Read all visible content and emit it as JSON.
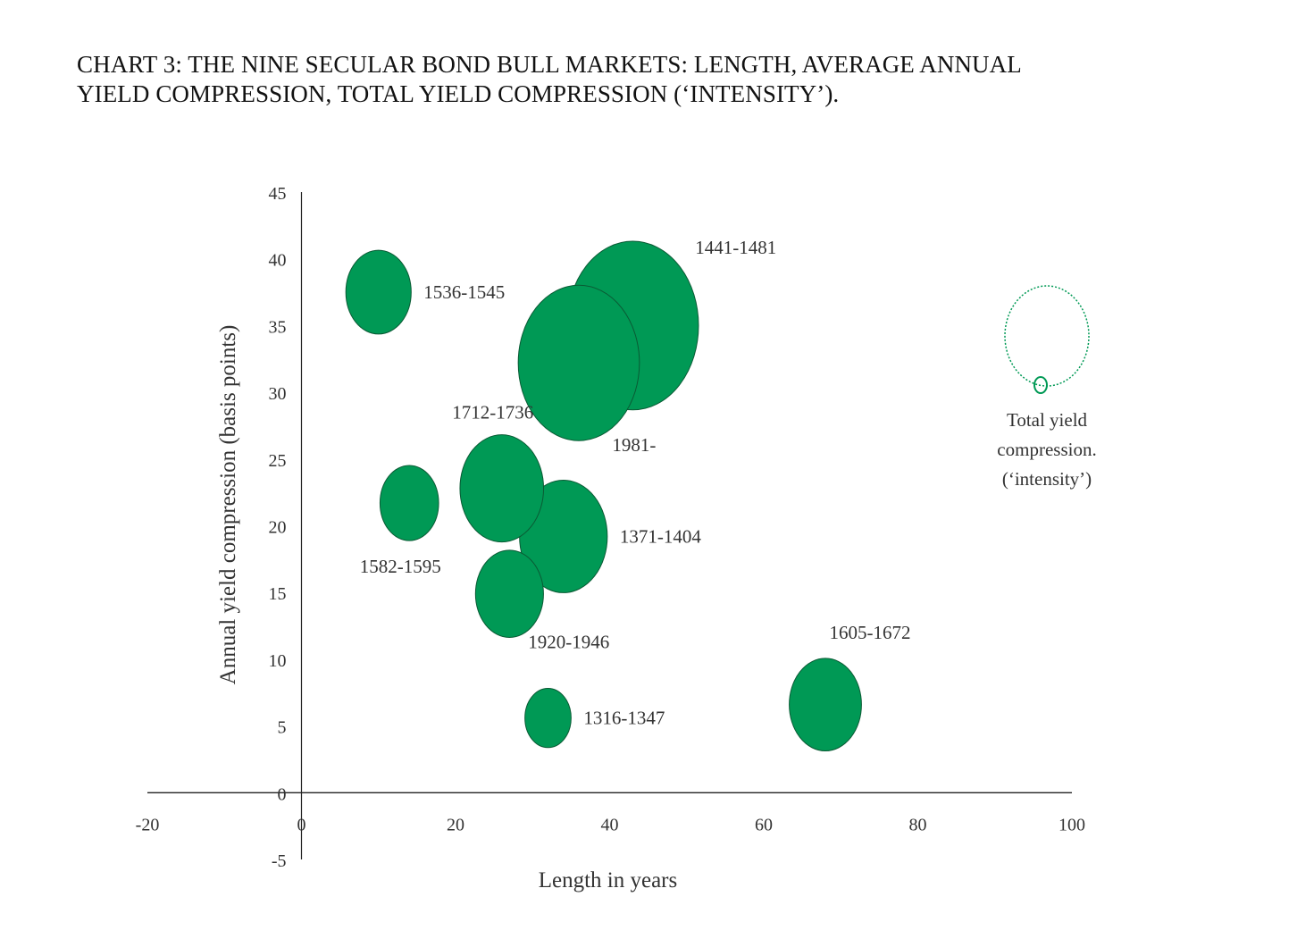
{
  "title": {
    "line1": "CHART 3: THE NINE SECULAR BOND BULL MARKETS: LENGTH, AVERAGE ANNUAL",
    "line2": "YIELD COMPRESSION, TOTAL YIELD COMPRESSION (‘INTENSITY’)."
  },
  "chart_data": {
    "type": "bubble",
    "title": "CHART 3: THE NINE SECULAR BOND BULL MARKETS: LENGTH, AVERAGE ANNUAL YIELD COMPRESSION, TOTAL YIELD COMPRESSION (‘INTENSITY’).",
    "xlabel": "Length in years",
    "ylabel": "Annual yield compression (basis points)",
    "xlim": [
      -20,
      100
    ],
    "ylim": [
      -5,
      45
    ],
    "x_ticks": [
      "-20",
      "0",
      "20",
      "40",
      "60",
      "80",
      "100"
    ],
    "y_ticks": [
      "-5",
      "0",
      "5",
      "10",
      "15",
      "20",
      "25",
      "30",
      "35",
      "40",
      "45"
    ],
    "color": "#009955",
    "points": [
      {
        "label": "1536-1545",
        "x": 10,
        "y": 37.5,
        "size": 3.6,
        "label_pos": "right"
      },
      {
        "label": "1441-1481",
        "x": 43,
        "y": 35,
        "size": 14.6,
        "label_pos": "upper-right"
      },
      {
        "label": "1981-",
        "x": 36,
        "y": 32.2,
        "size": 12.4,
        "label_pos": "lower-right"
      },
      {
        "label": "1712-1736",
        "x": 26,
        "y": 22.8,
        "size": 5.9,
        "label_pos": "above-left"
      },
      {
        "label": "1582-1595",
        "x": 14,
        "y": 21.7,
        "size": 2.9,
        "label_pos": "lower-left"
      },
      {
        "label": "1371-1404",
        "x": 34,
        "y": 19.2,
        "size": 6.5,
        "label_pos": "right"
      },
      {
        "label": "1920-1946",
        "x": 27,
        "y": 14.9,
        "size": 3.9,
        "label_pos": "lower-right"
      },
      {
        "label": "1316-1347",
        "x": 32,
        "y": 5.6,
        "size": 1.8,
        "label_pos": "right"
      },
      {
        "label": "1605-1672",
        "x": 68,
        "y": 6.6,
        "size": 4.4,
        "label_pos": "above"
      }
    ],
    "legend": {
      "lines": [
        "Total yield",
        "compression.",
        "(‘intensity’)"
      ],
      "placement": "right"
    }
  }
}
